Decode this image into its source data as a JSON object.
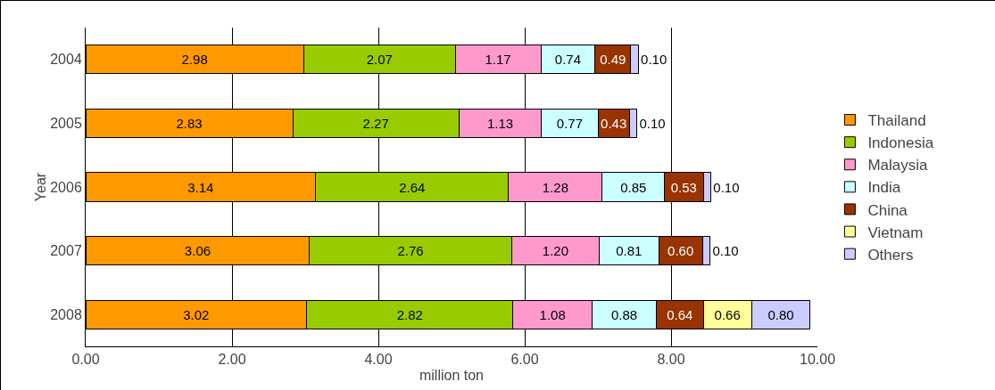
{
  "chart_data": {
    "type": "bar",
    "orientation": "horizontal",
    "stacked": true,
    "ylabel": "Year",
    "xlabel": "million ton",
    "categories": [
      "2004",
      "2005",
      "2006",
      "2007",
      "2008"
    ],
    "series": [
      {
        "name": "Thailand",
        "color": "#ff9900",
        "values": [
          2.98,
          2.83,
          3.14,
          3.06,
          3.02
        ],
        "value_labels": [
          "2.98",
          "2.83",
          "3.14",
          "3.06",
          "3.02"
        ]
      },
      {
        "name": "Indonesia",
        "color": "#99cc00",
        "values": [
          2.07,
          2.27,
          2.64,
          2.76,
          2.82
        ],
        "value_labels": [
          "2.07",
          "2.27",
          "2.64",
          "2.76",
          "2.82"
        ]
      },
      {
        "name": "Malaysia",
        "color": "#ff99cc",
        "values": [
          1.17,
          1.13,
          1.28,
          1.2,
          1.08
        ],
        "value_labels": [
          "1.17",
          "1.13",
          "1.28",
          "1.20",
          "1.08"
        ]
      },
      {
        "name": "India",
        "color": "#ccffff",
        "values": [
          0.74,
          0.77,
          0.85,
          0.81,
          0.88
        ],
        "value_labels": [
          "0.74",
          "0.77",
          "0.85",
          "0.81",
          "0.88"
        ]
      },
      {
        "name": "China",
        "color": "#993300",
        "values": [
          0.49,
          0.43,
          0.53,
          0.6,
          0.64
        ],
        "value_labels": [
          "0.49",
          "0.43",
          "0.53",
          "0.60",
          "0.64"
        ]
      },
      {
        "name": "Vietnam",
        "color": "#ffff99",
        "values": [
          null,
          null,
          null,
          null,
          0.66
        ],
        "value_labels": [
          null,
          null,
          null,
          null,
          "0.66"
        ]
      },
      {
        "name": "Others",
        "color": "#ccccff",
        "values": [
          0.1,
          0.1,
          0.1,
          0.1,
          0.8
        ],
        "value_labels": [
          "0.10",
          "0.10",
          "0.10",
          "0.10",
          "0.80"
        ]
      }
    ],
    "xlim": [
      0,
      10
    ],
    "xticks": [
      {
        "value": 0,
        "label": "0.00"
      },
      {
        "value": 2,
        "label": "2.00"
      },
      {
        "value": 4,
        "label": "4.00"
      },
      {
        "value": 6,
        "label": "6.00"
      },
      {
        "value": 8,
        "label": "8.00"
      },
      {
        "value": 10,
        "label": "10.00"
      }
    ],
    "grid": "x",
    "legend": "right"
  }
}
